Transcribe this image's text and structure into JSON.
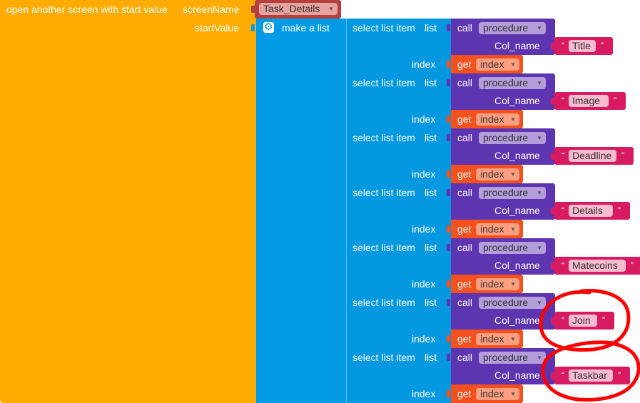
{
  "block": {
    "label_open": "open another screen with start value",
    "label_screen_name": "screenName",
    "screen_value": "Task_Details",
    "label_start_value": "startValue",
    "label_make_list": "make a list"
  },
  "items": [
    {
      "select_label": "select list item",
      "list_label": "list",
      "call_label": "call",
      "procedure": "procedure",
      "col_label": "Col_name",
      "string": "Title",
      "index_label": "index",
      "get_label": "get",
      "get_var": "index"
    },
    {
      "select_label": "select list item",
      "list_label": "list",
      "call_label": "call",
      "procedure": "procedure",
      "col_label": "Col_name",
      "string": "Image",
      "index_label": "index",
      "get_label": "get",
      "get_var": "index"
    },
    {
      "select_label": "select list item",
      "list_label": "list",
      "call_label": "call",
      "procedure": "procedure",
      "col_label": "Col_name",
      "string": "Deadline",
      "index_label": "index",
      "get_label": "get",
      "get_var": "index"
    },
    {
      "select_label": "select list item",
      "list_label": "list",
      "call_label": "call",
      "procedure": "procedure",
      "col_label": "Col_name",
      "string": "Details",
      "index_label": "index",
      "get_label": "get",
      "get_var": "index"
    },
    {
      "select_label": "select list item",
      "list_label": "list",
      "call_label": "call",
      "procedure": "procedure",
      "col_label": "Col_name",
      "string": "Matecoins",
      "index_label": "index",
      "get_label": "get",
      "get_var": "index"
    },
    {
      "select_label": "select list item",
      "list_label": "list",
      "call_label": "call",
      "procedure": "procedure",
      "col_label": "Col_name",
      "string": "Join",
      "index_label": "index",
      "get_label": "get",
      "get_var": "index"
    },
    {
      "select_label": "select list item",
      "list_label": "list",
      "call_label": "call",
      "procedure": "procedure",
      "col_label": "Col_name",
      "string": "Taskbar",
      "index_label": "index",
      "get_label": "get",
      "get_var": "index"
    }
  ],
  "colors": {
    "control": "#FFAB00",
    "list": "#039BE5",
    "procedure": "#5E35B1",
    "variable": "#F4511E",
    "text": "#D81B60",
    "screen_name": "#B2413E",
    "annotation": "#FF0000"
  },
  "annotation": {
    "type": "hand-drawn circles",
    "marks": [
      "Join",
      "Taskbar"
    ]
  }
}
